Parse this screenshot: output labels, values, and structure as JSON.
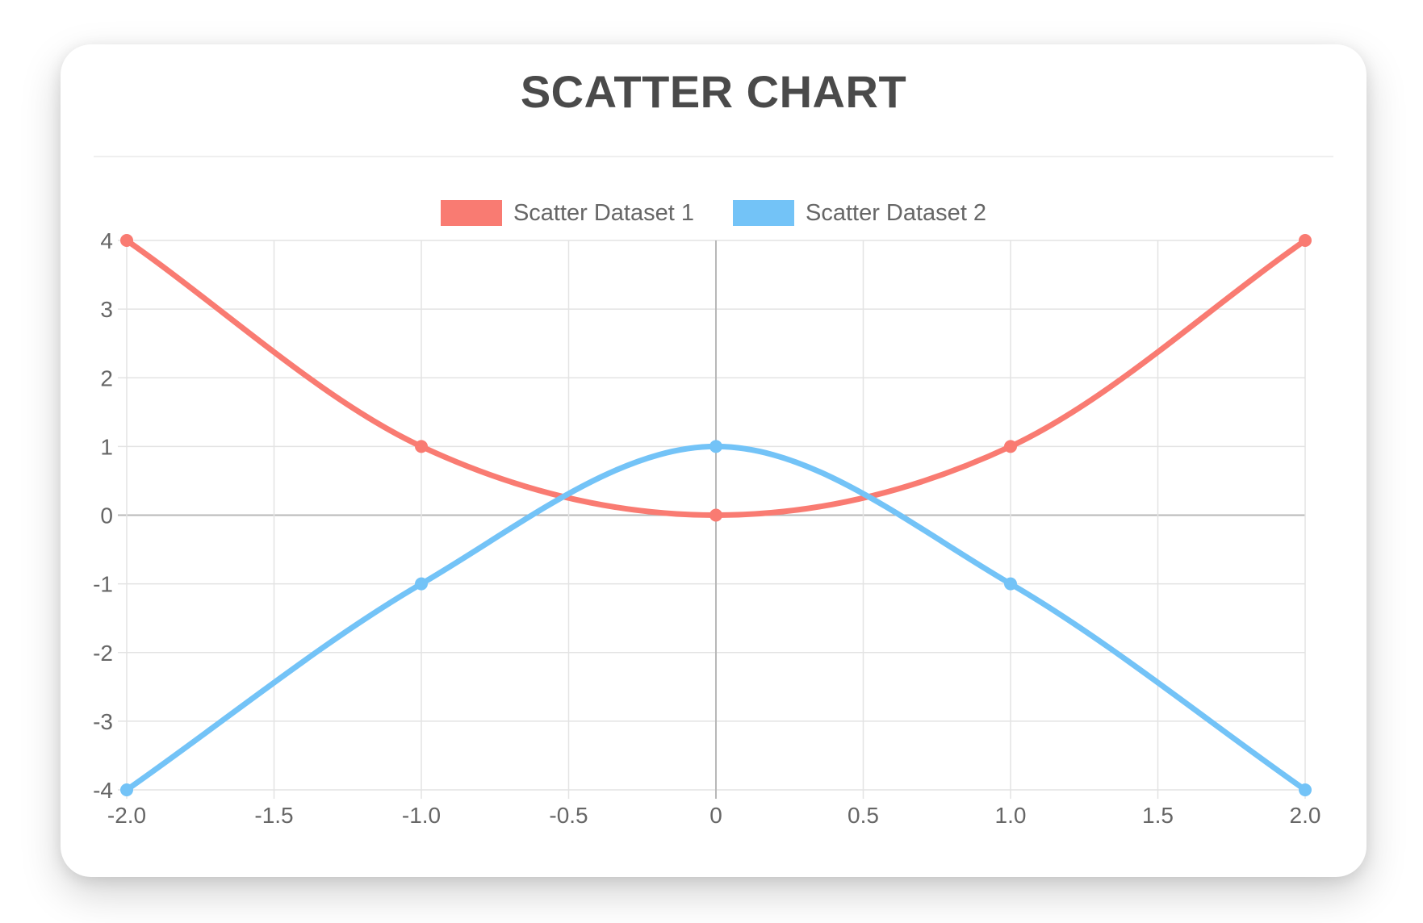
{
  "chart_data": {
    "type": "scatter",
    "title": "SCATTER CHART",
    "curve": "monotone",
    "grid": true,
    "legend": {
      "position": "top",
      "entries": [
        "Scatter Dataset 1",
        "Scatter Dataset 2"
      ]
    },
    "x_axis": {
      "min": -2,
      "max": 2,
      "tick_values": [
        -2,
        -1.5,
        -1,
        -0.5,
        0,
        0.5,
        1,
        1.5,
        2
      ],
      "tick_labels": [
        "-2.0",
        "-1.5",
        "-1.0",
        "-0.5",
        "0",
        "0.5",
        "1.0",
        "1.5",
        "2.0"
      ]
    },
    "y_axis": {
      "min": -4,
      "max": 4,
      "tick_values": [
        4,
        3,
        2,
        1,
        0,
        -1,
        -2,
        -3,
        -4
      ],
      "tick_labels": [
        "4",
        "3",
        "2",
        "1",
        "0",
        "-1",
        "-2",
        "-3",
        "-4"
      ]
    },
    "series": [
      {
        "name": "Scatter Dataset 1",
        "color": "#f97b72",
        "points": [
          [
            -2,
            4
          ],
          [
            -1,
            1
          ],
          [
            0,
            0
          ],
          [
            1,
            1
          ],
          [
            2,
            4
          ]
        ]
      },
      {
        "name": "Scatter Dataset 2",
        "color": "#73c3f7",
        "points": [
          [
            -2,
            -4
          ],
          [
            -1,
            -1
          ],
          [
            0,
            1
          ],
          [
            1,
            -1
          ],
          [
            2,
            -4
          ]
        ]
      }
    ],
    "colors": {
      "title": "#4a4a4a",
      "tick_label": "#666666",
      "grid": "#e3e3e3",
      "zero_line": "#b8b8b8"
    }
  }
}
